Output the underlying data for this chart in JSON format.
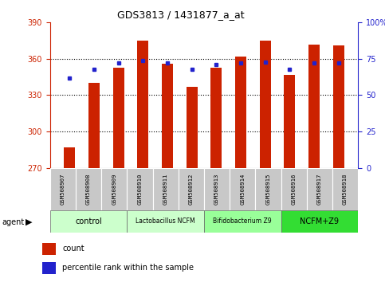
{
  "title": "GDS3813 / 1431877_a_at",
  "samples": [
    "GSM508907",
    "GSM508908",
    "GSM508909",
    "GSM508910",
    "GSM508911",
    "GSM508912",
    "GSM508913",
    "GSM508914",
    "GSM508915",
    "GSM508916",
    "GSM508917",
    "GSM508918"
  ],
  "count_values": [
    287,
    340,
    353,
    375,
    356,
    337,
    353,
    362,
    375,
    347,
    372,
    371
  ],
  "percentile_values": [
    62,
    68,
    72,
    74,
    72,
    68,
    71,
    72,
    73,
    68,
    72,
    72
  ],
  "ylim_left": [
    270,
    390
  ],
  "ylim_right": [
    0,
    100
  ],
  "yticks_left": [
    270,
    300,
    330,
    360,
    390
  ],
  "yticks_right": [
    0,
    25,
    50,
    75,
    100
  ],
  "ytick_right_labels": [
    "0",
    "25",
    "50",
    "75",
    "100%"
  ],
  "bar_color": "#cc2200",
  "dot_color": "#2222cc",
  "groups": [
    {
      "label": "control",
      "start": 0,
      "end": 3,
      "color": "#ccffcc"
    },
    {
      "label": "Lactobacillus NCFM",
      "start": 3,
      "end": 6,
      "color": "#ccffcc"
    },
    {
      "label": "Bifidobacterium Z9",
      "start": 6,
      "end": 9,
      "color": "#99ff99"
    },
    {
      "label": "NCFM+Z9",
      "start": 9,
      "end": 12,
      "color": "#33dd33"
    }
  ],
  "agent_label": "agent",
  "legend_count": "count",
  "legend_pct": "percentile rank within the sample",
  "left_axis_color": "#cc2200",
  "right_axis_color": "#2222cc",
  "grid_lines": [
    300,
    330,
    360
  ],
  "bar_width": 0.45
}
